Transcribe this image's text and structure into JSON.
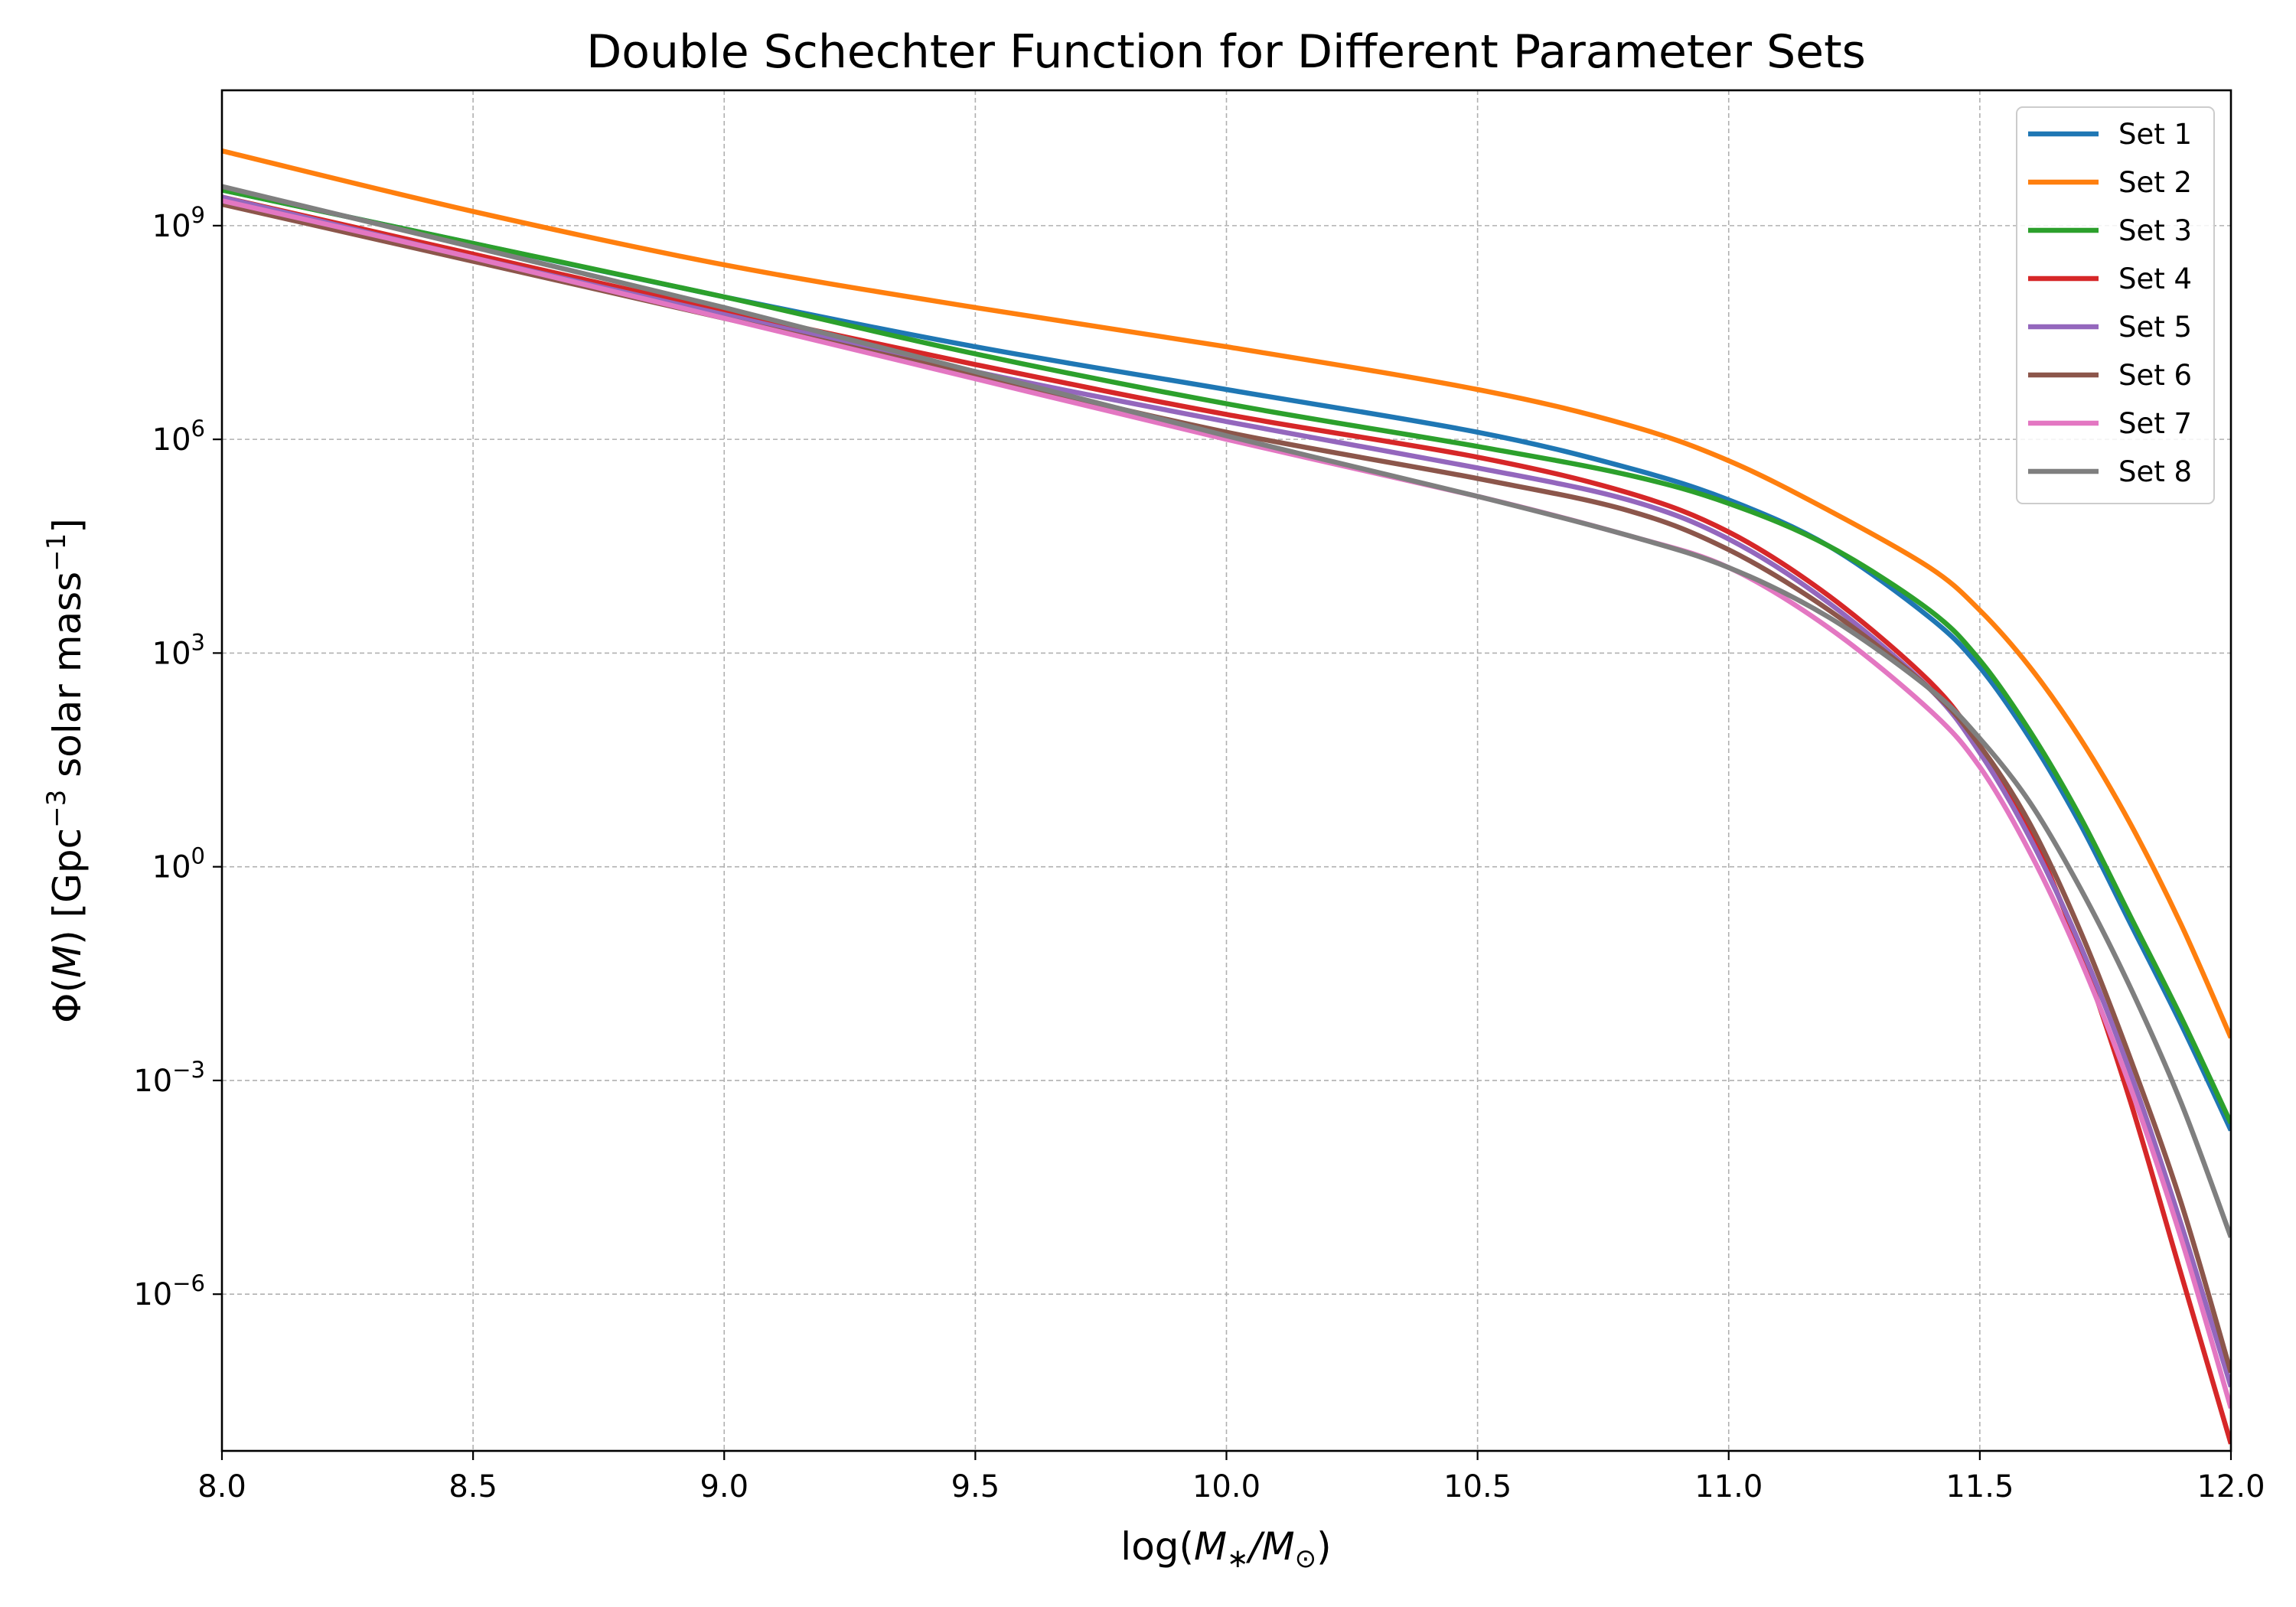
{
  "chart_data": {
    "type": "line",
    "title": "Double Schechter Function for Different Parameter Sets",
    "xlabel": "log(M*/M⊙)",
    "xlabel_parts": {
      "prefix": "log(",
      "m1": "M",
      "sub1": "∗",
      "slash": "/",
      "m2": "M",
      "sub2": "⊙",
      "suffix": ")"
    },
    "ylabel": "Φ(M) [Gpc⁻³ solar mass⁻¹]",
    "ylabel_parts": {
      "phi": "Φ(",
      "m": "M",
      "close": ") [Gpc",
      "exp1": "−3",
      "mid": " solar mass",
      "exp2": "−1",
      "end": "]"
    },
    "xlim": [
      8.0,
      12.0
    ],
    "ylim_log10": [
      -8.2,
      10.9
    ],
    "yscale": "log",
    "grid": true,
    "legend_position": "top-right",
    "x_ticks": [
      "8.0",
      "8.5",
      "9.0",
      "9.5",
      "10.0",
      "10.5",
      "11.0",
      "11.5",
      "12.0"
    ],
    "y_ticks": [
      {
        "base": "10",
        "exp": "9",
        "value": 9
      },
      {
        "base": "10",
        "exp": "6",
        "value": 6
      },
      {
        "base": "10",
        "exp": "3",
        "value": 3
      },
      {
        "base": "10",
        "exp": "0",
        "value": 0
      },
      {
        "base": "10",
        "exp": "−3",
        "value": -3
      },
      {
        "base": "10",
        "exp": "−6",
        "value": -6
      }
    ],
    "series": [
      {
        "name": "Set 1",
        "color": "#1f77b4",
        "x": [
          8.0,
          8.5,
          9.0,
          9.5,
          10.0,
          10.5,
          10.8,
          11.0,
          11.2,
          11.4,
          11.5,
          11.6,
          11.7,
          11.8,
          11.9,
          12.0
        ],
        "log10_y": [
          9.5,
          8.75,
          8.0,
          7.3,
          6.7,
          6.1,
          5.6,
          5.15,
          4.5,
          3.5,
          2.8,
          1.8,
          0.6,
          -0.8,
          -2.2,
          -3.7
        ]
      },
      {
        "name": "Set 2",
        "color": "#ff7f0e",
        "x": [
          8.0,
          8.5,
          9.0,
          9.5,
          10.0,
          10.5,
          10.8,
          11.0,
          11.2,
          11.4,
          11.5,
          11.6,
          11.7,
          11.8,
          11.9,
          12.0
        ],
        "log10_y": [
          10.05,
          9.2,
          8.45,
          7.85,
          7.3,
          6.7,
          6.2,
          5.7,
          5.0,
          4.2,
          3.6,
          2.8,
          1.8,
          0.6,
          -0.8,
          -2.4
        ]
      },
      {
        "name": "Set 3",
        "color": "#2ca02c",
        "x": [
          8.0,
          8.5,
          9.0,
          9.5,
          10.0,
          10.5,
          10.8,
          11.0,
          11.2,
          11.4,
          11.5,
          11.6,
          11.7,
          11.8,
          11.9,
          12.0
        ],
        "log10_y": [
          9.5,
          8.75,
          8.0,
          7.2,
          6.5,
          5.9,
          5.5,
          5.1,
          4.5,
          3.6,
          2.9,
          1.9,
          0.7,
          -0.7,
          -2.1,
          -3.6
        ]
      },
      {
        "name": "Set 4",
        "color": "#d62728",
        "x": [
          8.0,
          8.5,
          9.0,
          9.5,
          10.0,
          10.5,
          10.8,
          11.0,
          11.2,
          11.4,
          11.5,
          11.6,
          11.7,
          11.8,
          11.9,
          12.0
        ],
        "log10_y": [
          9.4,
          8.6,
          7.8,
          7.05,
          6.35,
          5.75,
          5.25,
          4.7,
          3.8,
          2.6,
          1.7,
          0.5,
          -1.2,
          -3.3,
          -5.7,
          -8.1
        ]
      },
      {
        "name": "Set 5",
        "color": "#9467bd",
        "x": [
          8.0,
          8.5,
          9.0,
          9.5,
          10.0,
          10.5,
          10.8,
          11.0,
          11.2,
          11.4,
          11.5,
          11.6,
          11.7,
          11.8,
          11.9,
          12.0
        ],
        "log10_y": [
          9.4,
          8.55,
          7.75,
          6.95,
          6.25,
          5.6,
          5.15,
          4.6,
          3.7,
          2.5,
          1.6,
          0.4,
          -1.1,
          -2.9,
          -5.0,
          -7.3
        ]
      },
      {
        "name": "Set 6",
        "color": "#8c564b",
        "x": [
          8.0,
          8.5,
          9.0,
          9.5,
          10.0,
          10.5,
          10.8,
          11.0,
          11.2,
          11.4,
          11.5,
          11.6,
          11.7,
          11.8,
          11.9,
          12.0
        ],
        "log10_y": [
          9.3,
          8.5,
          7.7,
          6.9,
          6.1,
          5.45,
          5.0,
          4.45,
          3.6,
          2.5,
          1.7,
          0.6,
          -0.9,
          -2.7,
          -4.7,
          -7.1
        ]
      },
      {
        "name": "Set 7",
        "color": "#e377c2",
        "x": [
          8.0,
          8.5,
          9.0,
          9.5,
          10.0,
          10.5,
          10.8,
          11.0,
          11.2,
          11.4,
          11.5,
          11.6,
          11.7,
          11.8,
          11.9,
          12.0
        ],
        "log10_y": [
          9.35,
          8.55,
          7.7,
          6.85,
          6.0,
          5.2,
          4.65,
          4.2,
          3.35,
          2.2,
          1.4,
          0.2,
          -1.3,
          -3.1,
          -5.2,
          -7.6
        ]
      },
      {
        "name": "Set 8",
        "color": "#7f7f7f",
        "x": [
          8.0,
          8.5,
          9.0,
          9.5,
          10.0,
          10.5,
          10.8,
          11.0,
          11.2,
          11.4,
          11.5,
          11.6,
          11.7,
          11.8,
          11.9,
          12.0
        ],
        "log10_y": [
          9.55,
          8.7,
          7.85,
          6.95,
          6.05,
          5.2,
          4.65,
          4.2,
          3.5,
          2.5,
          1.8,
          0.9,
          -0.3,
          -1.7,
          -3.3,
          -5.2
        ]
      }
    ]
  }
}
